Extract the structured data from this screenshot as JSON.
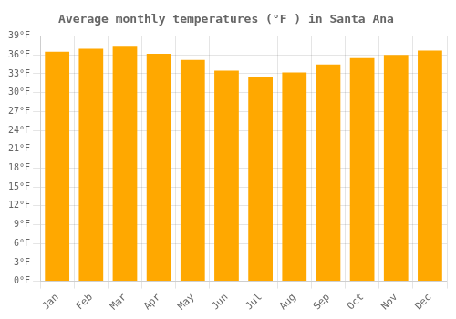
{
  "chart_data": {
    "type": "bar",
    "title": "Average monthly temperatures (°F ) in Santa Ana",
    "categories": [
      "Jan",
      "Feb",
      "Mar",
      "Apr",
      "May",
      "Jun",
      "Jul",
      "Aug",
      "Sep",
      "Oct",
      "Nov",
      "Dec"
    ],
    "values": [
      36.5,
      37.0,
      37.3,
      36.2,
      35.2,
      33.5,
      32.5,
      33.2,
      34.5,
      35.5,
      36.0,
      36.7
    ],
    "color": "#FFA800",
    "ylim": [
      0,
      39
    ],
    "yticks": [
      {
        "value": 0,
        "label": "0°F"
      },
      {
        "value": 3,
        "label": "3°F"
      },
      {
        "value": 6,
        "label": "6°F"
      },
      {
        "value": 9,
        "label": "9°F"
      },
      {
        "value": 12,
        "label": "12°F"
      },
      {
        "value": 15,
        "label": "15°F"
      },
      {
        "value": 18,
        "label": "18°F"
      },
      {
        "value": 21,
        "label": "21°F"
      },
      {
        "value": 24,
        "label": "24°F"
      },
      {
        "value": 27,
        "label": "27°F"
      },
      {
        "value": 30,
        "label": "30°F"
      },
      {
        "value": 33,
        "label": "33°F"
      },
      {
        "value": 36,
        "label": "36°F"
      },
      {
        "value": 39,
        "label": "39°F"
      }
    ],
    "grid": true
  }
}
